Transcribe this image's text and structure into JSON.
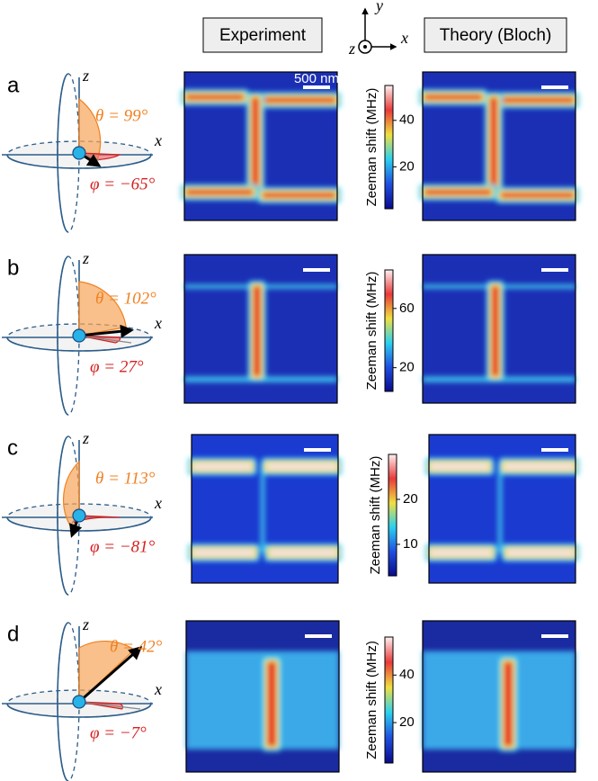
{
  "headers": {
    "experiment": "Experiment",
    "theory": "Theory (Bloch)"
  },
  "axes": {
    "y": "y",
    "x": "x",
    "z": "z"
  },
  "panels": [
    {
      "label": "a",
      "axis_z": "z",
      "axis_x": "x",
      "theta": "θ = 99°",
      "phi": "φ = −65°",
      "scale_bar": "500 nm",
      "colorbar": {
        "label": "Zeeman shift (MHz)",
        "lim": [
          2,
          55
        ],
        "ticks": [
          20,
          40
        ]
      }
    },
    {
      "label": "b",
      "axis_z": "z",
      "axis_x": "x",
      "theta": "θ = 102°",
      "phi": "φ = 27°",
      "colorbar": {
        "label": "Zeeman shift (MHz)",
        "lim": [
          4,
          86
        ],
        "ticks": [
          20,
          60
        ]
      }
    },
    {
      "label": "c",
      "axis_z": "z",
      "axis_x": "x",
      "theta": "θ = 113°",
      "phi": "φ = −81°",
      "colorbar": {
        "label": "Zeeman shift (MHz)",
        "lim": [
          3,
          30
        ],
        "ticks": [
          10,
          20
        ]
      }
    },
    {
      "label": "d",
      "axis_z": "z",
      "axis_x": "x",
      "theta": "θ = 42°",
      "phi": "φ = −7°",
      "colorbar": {
        "label": "Zeeman shift (MHz)",
        "lim": [
          3,
          56
        ],
        "ticks": [
          20,
          40
        ]
      }
    }
  ]
}
